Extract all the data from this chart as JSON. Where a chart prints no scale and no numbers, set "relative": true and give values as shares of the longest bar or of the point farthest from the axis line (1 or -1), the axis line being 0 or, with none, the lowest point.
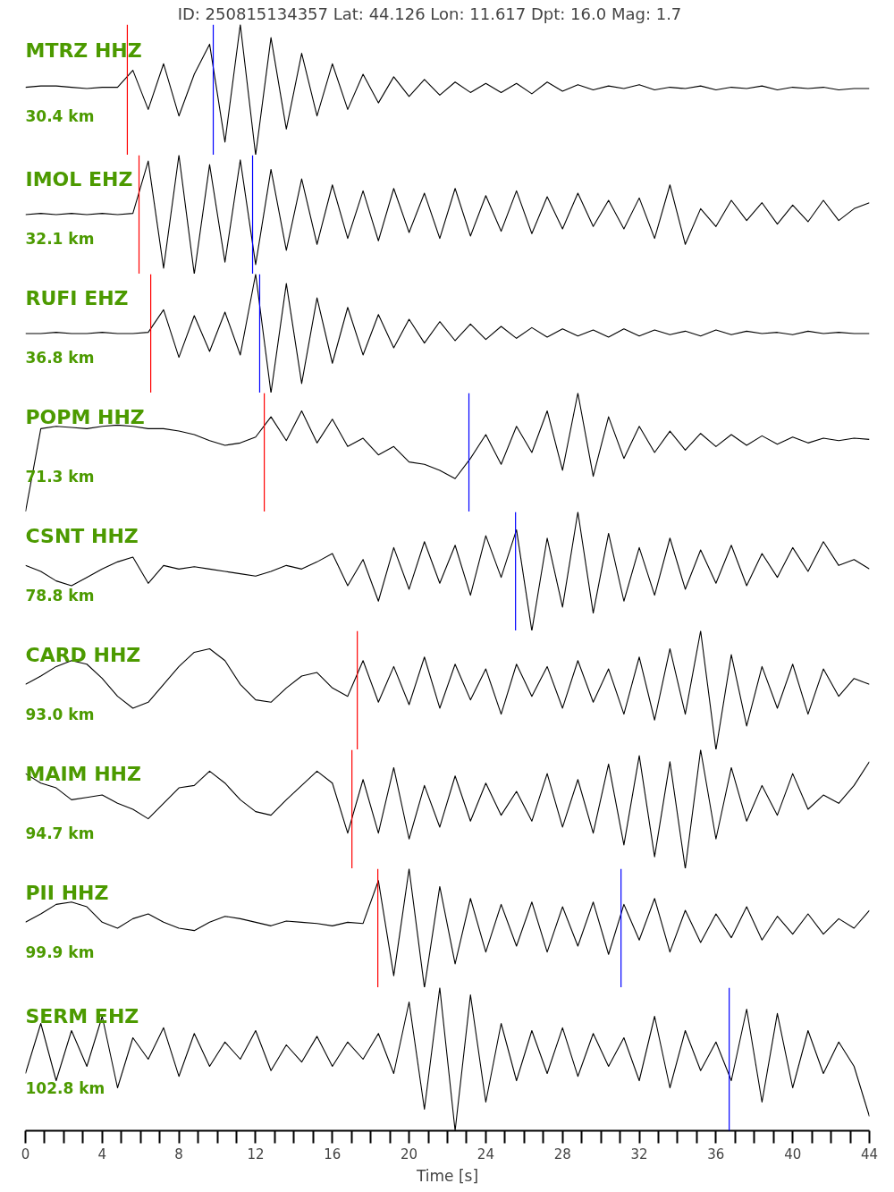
{
  "chart_data": [
    {
      "type": "line",
      "title": "ID: 250815134357 Lat:  44.126 Lon:  11.617 Dpt:    16.0 Mag:   1.7",
      "relative": true,
      "xlim": [
        0,
        44
      ],
      "tick_labels": false,
      "annotations": [
        "MTRZ HHZ",
        "30.4 km"
      ],
      "ref_lines": [
        {
          "axis": "x",
          "value": 5.31,
          "color": "#ff0000"
        },
        {
          "axis": "x",
          "value": 9.79,
          "color": "#0000ff"
        }
      ],
      "series": [
        {
          "color": "#000000",
          "x": [
            0,
            0.8,
            1.6,
            2.4,
            3.2,
            4,
            4.8,
            5.6,
            6.4,
            7.2,
            8,
            8.8,
            9.6,
            10.4,
            11.2,
            12,
            12.8,
            13.6,
            14.4,
            15.2,
            16,
            16.8,
            17.6,
            18.4,
            19.2,
            20,
            20.8,
            21.6,
            22.4,
            23.2,
            24,
            24.8,
            25.6,
            26.4,
            27.2,
            28,
            28.8,
            29.6,
            30.4,
            31.2,
            32,
            32.8,
            33.6,
            34.4,
            35.2,
            36,
            36.8,
            37.6,
            38.4,
            39.2,
            40,
            40.8,
            41.6,
            42.4,
            43.2,
            44
          ],
          "values": [
            0.52,
            0.53,
            0.53,
            0.52,
            0.51,
            0.52,
            0.52,
            0.65,
            0.35,
            0.7,
            0.3,
            0.62,
            0.85,
            0.1,
            1.0,
            0,
            0.9,
            0.2,
            0.78,
            0.3,
            0.7,
            0.35,
            0.62,
            0.4,
            0.6,
            0.45,
            0.58,
            0.46,
            0.56,
            0.48,
            0.55,
            0.48,
            0.55,
            0.47,
            0.56,
            0.49,
            0.54,
            0.5,
            0.53,
            0.51,
            0.54,
            0.5,
            0.52,
            0.51,
            0.53,
            0.5,
            0.52,
            0.51,
            0.53,
            0.5,
            0.52,
            0.51,
            0.52,
            0.5,
            0.51,
            0.51
          ]
        }
      ]
    },
    {
      "type": "line",
      "relative": true,
      "xlim": [
        0,
        44
      ],
      "tick_labels": false,
      "annotations": [
        "IMOL EHZ",
        "32.1 km"
      ],
      "ref_lines": [
        {
          "axis": "x",
          "value": 5.92,
          "color": "#ff0000"
        },
        {
          "axis": "x",
          "value": 11.84,
          "color": "#0000ff"
        }
      ],
      "series": [
        {
          "color": "#000000",
          "x": [
            0,
            0.8,
            1.6,
            2.4,
            3.2,
            4,
            4.8,
            5.6,
            6.4,
            7.2,
            8,
            8.8,
            9.6,
            10.4,
            11.2,
            12,
            12.8,
            13.6,
            14.4,
            15.2,
            16,
            16.8,
            17.6,
            18.4,
            19.2,
            20,
            20.8,
            21.6,
            22.4,
            23.2,
            24,
            24.8,
            25.6,
            26.4,
            27.2,
            28,
            28.8,
            29.6,
            30.4,
            31.2,
            32,
            32.8,
            33.6,
            34.4,
            35.2,
            36,
            36.8,
            37.6,
            38.4,
            39.2,
            40,
            40.8,
            41.6,
            42.4,
            43.2,
            44
          ],
          "values": [
            0.5,
            0.51,
            0.5,
            0.51,
            0.5,
            0.51,
            0.5,
            0.51,
            0.95,
            0.05,
            1.0,
            0,
            0.92,
            0.1,
            0.96,
            0.08,
            0.88,
            0.2,
            0.8,
            0.25,
            0.75,
            0.3,
            0.7,
            0.28,
            0.72,
            0.35,
            0.68,
            0.3,
            0.72,
            0.32,
            0.66,
            0.36,
            0.7,
            0.34,
            0.65,
            0.38,
            0.68,
            0.4,
            0.62,
            0.38,
            0.64,
            0.3,
            0.75,
            0.25,
            0.55,
            0.4,
            0.62,
            0.45,
            0.6,
            0.42,
            0.58,
            0.44,
            0.62,
            0.45,
            0.55,
            0.6
          ]
        }
      ]
    },
    {
      "type": "line",
      "relative": true,
      "xlim": [
        0,
        44
      ],
      "tick_labels": false,
      "annotations": [
        "RUFI EHZ",
        "36.8 km"
      ],
      "ref_lines": [
        {
          "axis": "x",
          "value": 6.53,
          "color": "#ff0000"
        },
        {
          "axis": "x",
          "value": 12.21,
          "color": "#0000ff"
        }
      ],
      "series": [
        {
          "color": "#000000",
          "x": [
            0,
            0.8,
            1.6,
            2.4,
            3.2,
            4,
            4.8,
            5.6,
            6.4,
            7.2,
            8,
            8.8,
            9.6,
            10.4,
            11.2,
            12,
            12.8,
            13.6,
            14.4,
            15.2,
            16,
            16.8,
            17.6,
            18.4,
            19.2,
            20,
            20.8,
            21.6,
            22.4,
            23.2,
            24,
            24.8,
            25.6,
            26.4,
            27.2,
            28,
            28.8,
            29.6,
            30.4,
            31.2,
            32,
            32.8,
            33.6,
            34.4,
            35.2,
            36,
            36.8,
            37.6,
            38.4,
            39.2,
            40,
            40.8,
            41.6,
            42.4,
            43.2,
            44
          ],
          "values": [
            0.5,
            0.5,
            0.51,
            0.5,
            0.5,
            0.51,
            0.5,
            0.5,
            0.51,
            0.7,
            0.3,
            0.65,
            0.35,
            0.68,
            0.32,
            1.0,
            0,
            0.92,
            0.08,
            0.8,
            0.25,
            0.72,
            0.32,
            0.66,
            0.38,
            0.62,
            0.42,
            0.6,
            0.44,
            0.58,
            0.45,
            0.56,
            0.46,
            0.55,
            0.47,
            0.54,
            0.48,
            0.53,
            0.47,
            0.54,
            0.48,
            0.53,
            0.49,
            0.52,
            0.48,
            0.53,
            0.49,
            0.52,
            0.5,
            0.51,
            0.49,
            0.52,
            0.5,
            0.51,
            0.5,
            0.5
          ]
        }
      ]
    },
    {
      "type": "line",
      "relative": true,
      "xlim": [
        0,
        44
      ],
      "tick_labels": false,
      "annotations": [
        "POPM HHZ",
        "71.3 km"
      ],
      "ref_lines": [
        {
          "axis": "x",
          "value": 12.45,
          "color": "#ff0000"
        },
        {
          "axis": "x",
          "value": 23.12,
          "color": "#0000ff"
        }
      ],
      "series": [
        {
          "color": "#000000",
          "x": [
            0,
            0.8,
            1.6,
            2.4,
            3.2,
            4,
            4.8,
            5.6,
            6.4,
            7.2,
            8,
            8.8,
            9.6,
            10.4,
            11.2,
            12,
            12.8,
            13.6,
            14.4,
            15.2,
            16,
            16.8,
            17.6,
            18.4,
            19.2,
            20,
            20.8,
            21.6,
            22.4,
            23.2,
            24,
            24.8,
            25.6,
            26.4,
            27.2,
            28,
            28.8,
            29.6,
            30.4,
            31.2,
            32,
            32.8,
            33.6,
            34.4,
            35.2,
            36,
            36.8,
            37.6,
            38.4,
            39.2,
            40,
            40.8,
            41.6,
            42.4,
            43.2,
            44
          ],
          "values": [
            0,
            0.7,
            0.72,
            0.71,
            0.7,
            0.72,
            0.73,
            0.72,
            0.7,
            0.7,
            0.68,
            0.65,
            0.6,
            0.56,
            0.58,
            0.63,
            0.8,
            0.6,
            0.85,
            0.58,
            0.78,
            0.55,
            0.62,
            0.48,
            0.55,
            0.42,
            0.4,
            0.35,
            0.28,
            0.45,
            0.65,
            0.4,
            0.72,
            0.5,
            0.85,
            0.35,
            1.0,
            0.3,
            0.8,
            0.45,
            0.72,
            0.5,
            0.68,
            0.52,
            0.66,
            0.55,
            0.65,
            0.56,
            0.64,
            0.57,
            0.63,
            0.58,
            0.62,
            0.6,
            0.62,
            0.61
          ]
        }
      ]
    },
    {
      "type": "line",
      "relative": true,
      "xlim": [
        0,
        44
      ],
      "tick_labels": false,
      "annotations": [
        "CSNT HHZ",
        "78.8 km"
      ],
      "ref_lines": [
        {
          "axis": "x",
          "value": 25.55,
          "color": "#0000ff"
        }
      ],
      "series": [
        {
          "color": "#000000",
          "x": [
            0,
            0.8,
            1.6,
            2.4,
            3.2,
            4,
            4.8,
            5.6,
            6.4,
            7.2,
            8,
            8.8,
            9.6,
            10.4,
            11.2,
            12,
            12.8,
            13.6,
            14.4,
            15.2,
            16,
            16.8,
            17.6,
            18.4,
            19.2,
            20,
            20.8,
            21.6,
            22.4,
            23.2,
            24,
            24.8,
            25.6,
            26.4,
            27.2,
            28,
            28.8,
            29.6,
            30.4,
            31.2,
            32,
            32.8,
            33.6,
            34.4,
            35.2,
            36,
            36.8,
            37.6,
            38.4,
            39.2,
            40,
            40.8,
            41.6,
            42.4,
            43.2,
            44
          ],
          "values": [
            0.55,
            0.5,
            0.42,
            0.38,
            0.45,
            0.52,
            0.58,
            0.62,
            0.4,
            0.55,
            0.52,
            0.54,
            0.52,
            0.5,
            0.48,
            0.46,
            0.5,
            0.55,
            0.52,
            0.58,
            0.65,
            0.38,
            0.6,
            0.25,
            0.7,
            0.35,
            0.75,
            0.4,
            0.72,
            0.3,
            0.8,
            0.45,
            0.85,
            0,
            0.78,
            0.2,
            1.0,
            0.15,
            0.82,
            0.25,
            0.7,
            0.3,
            0.78,
            0.35,
            0.68,
            0.4,
            0.72,
            0.38,
            0.65,
            0.45,
            0.7,
            0.5,
            0.75,
            0.55,
            0.6,
            0.52
          ]
        }
      ]
    },
    {
      "type": "line",
      "relative": true,
      "xlim": [
        0,
        44
      ],
      "tick_labels": false,
      "annotations": [
        "CARD HHZ",
        "93.0 km"
      ],
      "ref_lines": [
        {
          "axis": "x",
          "value": 17.3,
          "color": "#ff0000"
        }
      ],
      "series": [
        {
          "color": "#000000",
          "x": [
            0,
            0.8,
            1.6,
            2.4,
            3.2,
            4,
            4.8,
            5.6,
            6.4,
            7.2,
            8,
            8.8,
            9.6,
            10.4,
            11.2,
            12,
            12.8,
            13.6,
            14.4,
            15.2,
            16,
            16.8,
            17.6,
            18.4,
            19.2,
            20,
            20.8,
            21.6,
            22.4,
            23.2,
            24,
            24.8,
            25.6,
            26.4,
            27.2,
            28,
            28.8,
            29.6,
            30.4,
            31.2,
            32,
            32.8,
            33.6,
            34.4,
            35.2,
            36,
            36.8,
            37.6,
            38.4,
            39.2,
            40,
            40.8,
            41.6,
            42.4,
            43.2,
            44
          ],
          "values": [
            0.55,
            0.62,
            0.7,
            0.75,
            0.72,
            0.6,
            0.45,
            0.35,
            0.4,
            0.55,
            0.7,
            0.82,
            0.85,
            0.75,
            0.55,
            0.42,
            0.4,
            0.52,
            0.62,
            0.65,
            0.52,
            0.45,
            0.75,
            0.4,
            0.7,
            0.38,
            0.78,
            0.35,
            0.72,
            0.42,
            0.68,
            0.3,
            0.72,
            0.45,
            0.7,
            0.35,
            0.75,
            0.4,
            0.68,
            0.3,
            0.78,
            0.25,
            0.85,
            0.3,
            1.0,
            0,
            0.8,
            0.2,
            0.7,
            0.35,
            0.72,
            0.3,
            0.68,
            0.45,
            0.6,
            0.55
          ]
        }
      ]
    },
    {
      "type": "line",
      "relative": true,
      "xlim": [
        0,
        44
      ],
      "tick_labels": false,
      "annotations": [
        "MAIM HHZ",
        "94.7 km"
      ],
      "ref_lines": [
        {
          "axis": "x",
          "value": 17.02,
          "color": "#ff0000"
        }
      ],
      "series": [
        {
          "color": "#000000",
          "x": [
            0,
            0.8,
            1.6,
            2.4,
            3.2,
            4,
            4.8,
            5.6,
            6.4,
            7.2,
            8,
            8.8,
            9.6,
            10.4,
            11.2,
            12,
            12.8,
            13.6,
            14.4,
            15.2,
            16,
            16.8,
            17.6,
            18.4,
            19.2,
            20,
            20.8,
            21.6,
            22.4,
            23.2,
            24,
            24.8,
            25.6,
            26.4,
            27.2,
            28,
            28.8,
            29.6,
            30.4,
            31.2,
            32,
            32.8,
            33.6,
            34.4,
            35.2,
            36,
            36.8,
            37.6,
            38.4,
            39.2,
            40,
            40.8,
            41.6,
            42.4,
            43.2,
            44
          ],
          "values": [
            0.8,
            0.72,
            0.68,
            0.58,
            0.6,
            0.62,
            0.55,
            0.5,
            0.42,
            0.55,
            0.68,
            0.7,
            0.82,
            0.72,
            0.58,
            0.48,
            0.45,
            0.58,
            0.7,
            0.82,
            0.72,
            0.3,
            0.75,
            0.3,
            0.85,
            0.25,
            0.7,
            0.35,
            0.78,
            0.4,
            0.72,
            0.45,
            0.65,
            0.4,
            0.8,
            0.35,
            0.75,
            0.3,
            0.88,
            0.2,
            0.95,
            0.1,
            0.9,
            0,
            1.0,
            0.25,
            0.85,
            0.4,
            0.7,
            0.45,
            0.8,
            0.5,
            0.62,
            0.55,
            0.7,
            0.9
          ]
        }
      ]
    },
    {
      "type": "line",
      "relative": true,
      "xlim": [
        0,
        44
      ],
      "tick_labels": false,
      "annotations": [
        "PII HHZ",
        "99.9 km"
      ],
      "ref_lines": [
        {
          "axis": "x",
          "value": 18.37,
          "color": "#ff0000"
        },
        {
          "axis": "x",
          "value": 31.05,
          "color": "#0000ff"
        }
      ],
      "series": [
        {
          "color": "#000000",
          "x": [
            0,
            0.8,
            1.6,
            2.4,
            3.2,
            4,
            4.8,
            5.6,
            6.4,
            7.2,
            8,
            8.8,
            9.6,
            10.4,
            11.2,
            12,
            12.8,
            13.6,
            14.4,
            15.2,
            16,
            16.8,
            17.6,
            18.4,
            19.2,
            20,
            20.8,
            21.6,
            22.4,
            23.2,
            24,
            24.8,
            25.6,
            26.4,
            27.2,
            28,
            28.8,
            29.6,
            30.4,
            31.2,
            32,
            32.8,
            33.6,
            34.4,
            35.2,
            36,
            36.8,
            37.6,
            38.4,
            39.2,
            40,
            40.8,
            41.6,
            42.4,
            43.2,
            44
          ],
          "values": [
            0.55,
            0.62,
            0.7,
            0.72,
            0.68,
            0.55,
            0.5,
            0.58,
            0.62,
            0.55,
            0.5,
            0.48,
            0.55,
            0.6,
            0.58,
            0.55,
            0.52,
            0.56,
            0.55,
            0.54,
            0.52,
            0.55,
            0.54,
            0.9,
            0.1,
            1.0,
            0,
            0.85,
            0.2,
            0.75,
            0.3,
            0.7,
            0.35,
            0.72,
            0.3,
            0.68,
            0.35,
            0.72,
            0.28,
            0.7,
            0.4,
            0.75,
            0.3,
            0.65,
            0.38,
            0.62,
            0.42,
            0.68,
            0.4,
            0.6,
            0.45,
            0.62,
            0.45,
            0.58,
            0.5,
            0.65
          ]
        }
      ]
    },
    {
      "type": "line",
      "relative": true,
      "xlim": [
        0,
        44
      ],
      "tick_labels": "x",
      "xlabel": "Time [s]",
      "annotations": [
        "SERM EHZ",
        "102.8 km"
      ],
      "xticks": [
        0,
        {
          "value": 1,
          "label": null
        },
        {
          "value": 2,
          "label": null
        },
        {
          "value": 3,
          "label": null
        },
        4,
        {
          "value": 5,
          "label": null
        },
        {
          "value": 6,
          "label": null
        },
        {
          "value": 7,
          "label": null
        },
        8,
        {
          "value": 9,
          "label": null
        },
        {
          "value": 10,
          "label": null
        },
        {
          "value": 11,
          "label": null
        },
        12,
        {
          "value": 13,
          "label": null
        },
        {
          "value": 14,
          "label": null
        },
        {
          "value": 15,
          "label": null
        },
        16,
        {
          "value": 17,
          "label": null
        },
        {
          "value": 18,
          "label": null
        },
        {
          "value": 19,
          "label": null
        },
        20,
        {
          "value": 21,
          "label": null
        },
        {
          "value": 22,
          "label": null
        },
        {
          "value": 23,
          "label": null
        },
        24,
        {
          "value": 25,
          "label": null
        },
        {
          "value": 26,
          "label": null
        },
        {
          "value": 27,
          "label": null
        },
        28,
        {
          "value": 29,
          "label": null
        },
        {
          "value": 30,
          "label": null
        },
        {
          "value": 31,
          "label": null
        },
        32,
        {
          "value": 33,
          "label": null
        },
        {
          "value": 34,
          "label": null
        },
        {
          "value": 35,
          "label": null
        },
        36,
        {
          "value": 37,
          "label": null
        },
        {
          "value": 38,
          "label": null
        },
        {
          "value": 39,
          "label": null
        },
        40,
        {
          "value": 41,
          "label": null
        },
        {
          "value": 42,
          "label": null
        },
        {
          "value": 43,
          "label": null
        },
        44
      ],
      "ref_lines": [
        {
          "axis": "x",
          "value": 36.69,
          "color": "#0000ff"
        }
      ],
      "series": [
        {
          "color": "#000000",
          "x": [
            0,
            0.8,
            1.6,
            2.4,
            3.2,
            4,
            4.8,
            5.6,
            6.4,
            7.2,
            8,
            8.8,
            9.6,
            10.4,
            11.2,
            12,
            12.8,
            13.6,
            14.4,
            15.2,
            16,
            16.8,
            17.6,
            18.4,
            19.2,
            20,
            20.8,
            21.6,
            22.4,
            23.2,
            24,
            24.8,
            25.6,
            26.4,
            27.2,
            28,
            28.8,
            29.6,
            30.4,
            31.2,
            32,
            32.8,
            33.6,
            34.4,
            35.2,
            36,
            36.8,
            37.6,
            38.4,
            39.2,
            40,
            40.8,
            41.6,
            42.4,
            43.2,
            44
          ],
          "values": [
            0.4,
            0.75,
            0.35,
            0.7,
            0.45,
            0.8,
            0.3,
            0.65,
            0.5,
            0.72,
            0.38,
            0.68,
            0.45,
            0.62,
            0.5,
            0.7,
            0.42,
            0.6,
            0.48,
            0.66,
            0.45,
            0.62,
            0.5,
            0.68,
            0.4,
            0.9,
            0.15,
            1.0,
            0,
            0.95,
            0.2,
            0.75,
            0.35,
            0.7,
            0.4,
            0.72,
            0.38,
            0.68,
            0.45,
            0.65,
            0.35,
            0.8,
            0.3,
            0.7,
            0.42,
            0.62,
            0.35,
            0.85,
            0.2,
            0.82,
            0.3,
            0.7,
            0.4,
            0.62,
            0.45,
            0.1
          ]
        }
      ]
    }
  ]
}
